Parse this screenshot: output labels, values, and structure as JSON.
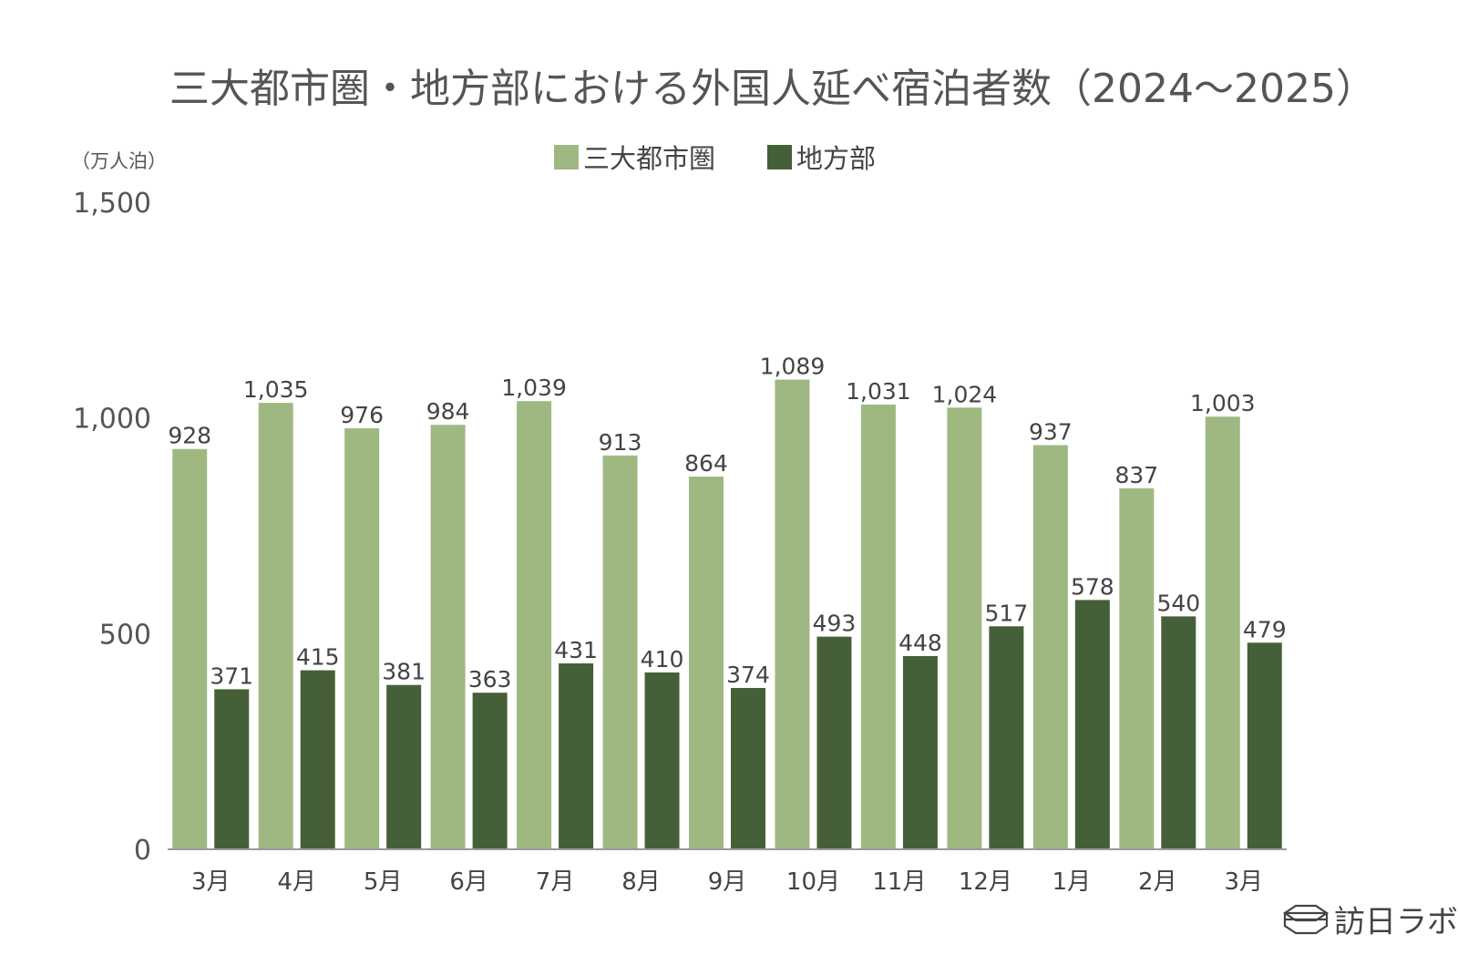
{
  "chart_data": {
    "type": "bar",
    "title": "三大都市圏・地方部における外国人延べ宿泊者数（2024～2025）",
    "unit_label": "（万人泊）",
    "categories": [
      "3月",
      "4月",
      "5月",
      "6月",
      "7月",
      "8月",
      "9月",
      "10月",
      "11月",
      "12月",
      "1月",
      "2月",
      "3月"
    ],
    "series": [
      {
        "name": "三大都市圏",
        "color": "#9fb882",
        "values": [
          928,
          1035,
          976,
          984,
          1039,
          913,
          864,
          1089,
          1031,
          1024,
          937,
          837,
          1003
        ]
      },
      {
        "name": "地方部",
        "color": "#456038",
        "values": [
          371,
          415,
          381,
          363,
          431,
          410,
          374,
          493,
          448,
          517,
          578,
          540,
          479
        ]
      }
    ],
    "ylim": [
      0,
      1500
    ],
    "yticks": [
      {
        "value": 0,
        "label": "0"
      },
      {
        "value": 500,
        "label": "500"
      },
      {
        "value": 1000,
        "label": "1,000"
      },
      {
        "value": 1500,
        "label": "1,500"
      }
    ],
    "grid": false,
    "legend_position": "top-center"
  },
  "branding": {
    "logo_text": "訪日ラボ",
    "logo_icon": "cube-icon"
  }
}
